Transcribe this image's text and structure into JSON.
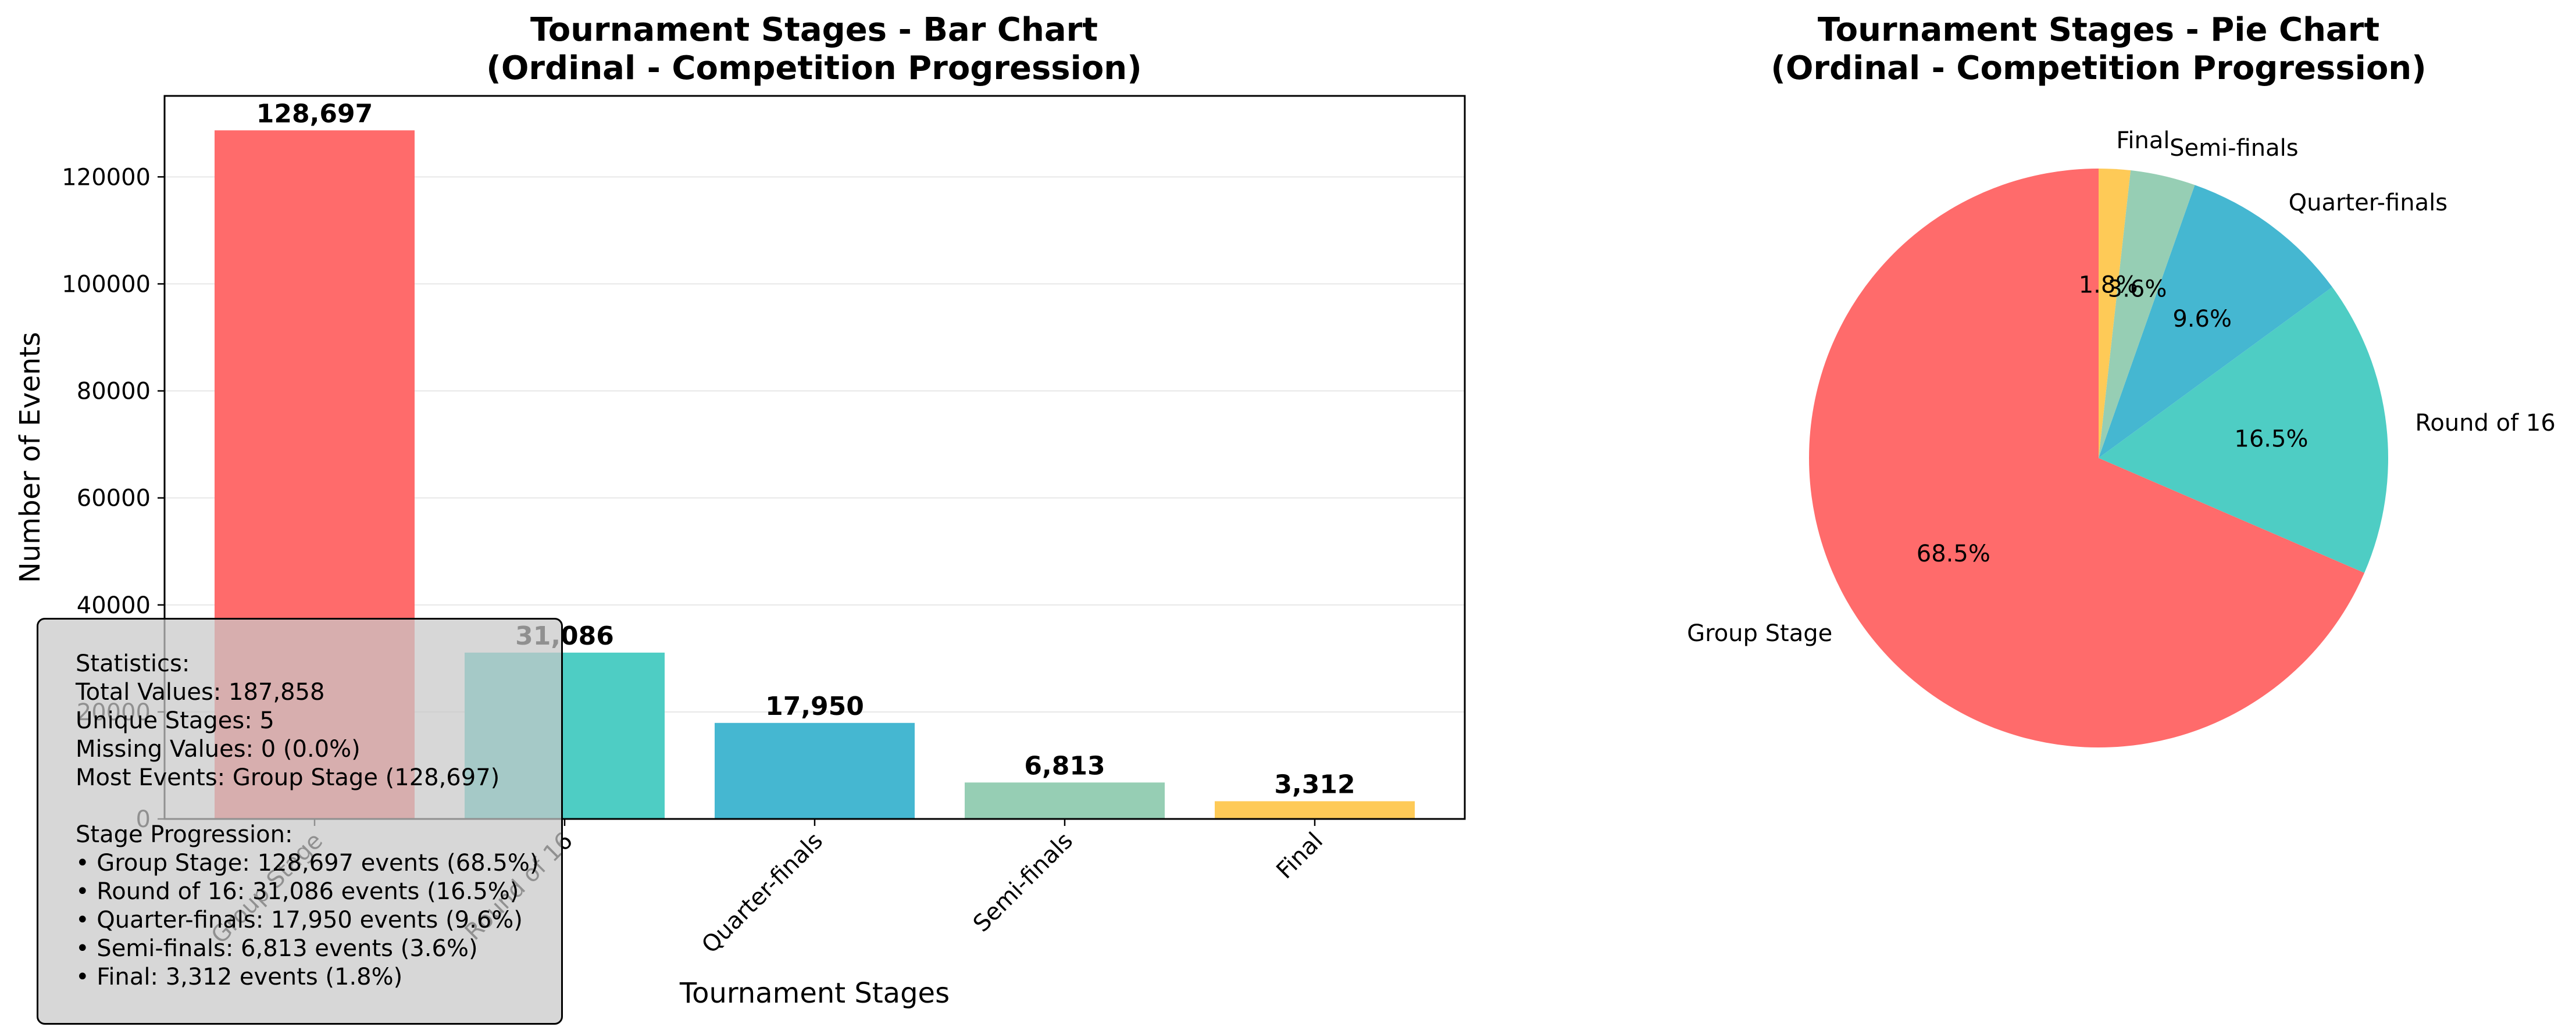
{
  "chart_data": [
    {
      "type": "bar",
      "title": "Tournament Stages - Bar Chart",
      "subtitle": "(Ordinal - Competition Progression)",
      "xlabel": "Tournament Stages",
      "ylabel": "Number of Events",
      "categories": [
        "Group Stage",
        "Round of 16",
        "Quarter-finals",
        "Semi-finals",
        "Final"
      ],
      "values": [
        128697,
        31086,
        17950,
        6813,
        3312
      ],
      "value_labels": [
        "128,697",
        "31,086",
        "17,950",
        "6,813",
        "3,312"
      ],
      "colors": [
        "#ff6b6b",
        "#4ecdc4",
        "#45b7d1",
        "#96ceb4",
        "#feca57"
      ],
      "ylim": [
        0,
        135134
      ],
      "yticks": [
        0,
        20000,
        40000,
        60000,
        80000,
        100000,
        120000
      ],
      "ytick_labels": [
        "0",
        "20000",
        "40000",
        "60000",
        "80000",
        "100000",
        "120000"
      ],
      "grid": "horizontal",
      "legend": "none"
    },
    {
      "type": "pie",
      "title": "Tournament Stages - Pie Chart",
      "subtitle": "(Ordinal - Competition Progression)",
      "labels": [
        "Group Stage",
        "Round of 16",
        "Quarter-finals",
        "Semi-finals",
        "Final"
      ],
      "values": [
        128697,
        31086,
        17950,
        6813,
        3312
      ],
      "percent_labels": [
        "68.5%",
        "16.5%",
        "9.6%",
        "3.6%",
        "1.8%"
      ],
      "colors": [
        "#ff6b6b",
        "#4ecdc4",
        "#45b7d1",
        "#96ceb4",
        "#feca57"
      ],
      "start_angle_deg": 90,
      "direction": "counterclockwise"
    }
  ],
  "stats_box": {
    "heading": "Statistics:",
    "total": "Total Values: 187,858",
    "unique": "Unique Stages: 5",
    "missing": "Missing Values: 0 (0.0%)",
    "most": "Most Events: Group Stage (128,697)",
    "progression_heading": "Stage Progression:",
    "progression": [
      "• Group Stage: 128,697 events (68.5%)",
      "• Round of 16: 31,086 events (16.5%)",
      "• Quarter-finals: 17,950 events (9.6%)",
      "• Semi-finals: 6,813 events (3.6%)",
      "• Final: 3,312 events (1.8%)"
    ]
  }
}
